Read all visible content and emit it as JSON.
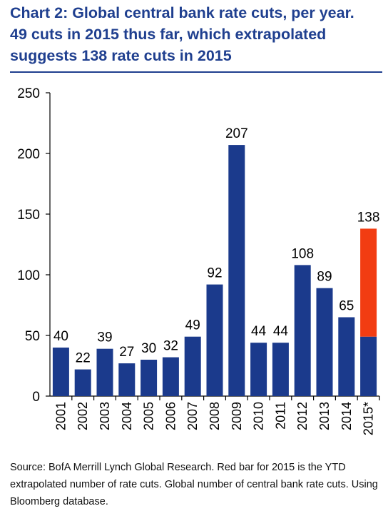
{
  "title": {
    "line1": "Chart 2: Global central bank rate cuts, per year.",
    "line2": "49 cuts in 2015 thus far, which extrapolated",
    "line3": "suggests 138 rate cuts in 2015"
  },
  "source": "Source: BofA Merrill Lynch Global Research. Red bar for 2015 is the YTD extrapolated number of rate cuts. Global number of central bank rate cuts. Using Bloomberg database.",
  "colors": {
    "bar": "#1b3a8c",
    "extrapolated": "#f23c12",
    "title": "#1f3f8f"
  },
  "chart_data": {
    "type": "bar",
    "categories": [
      "2001",
      "2002",
      "2003",
      "2004",
      "2005",
      "2006",
      "2007",
      "2008",
      "2009",
      "2010",
      "2011",
      "2012",
      "2013",
      "2014",
      "2015*"
    ],
    "series": [
      {
        "values": [
          40,
          22,
          39,
          27,
          30,
          32,
          49,
          92,
          207,
          44,
          44,
          108,
          89,
          65,
          49
        ]
      },
      {
        "values": [
          0,
          0,
          0,
          0,
          0,
          0,
          0,
          0,
          0,
          0,
          0,
          0,
          0,
          0,
          89
        ]
      }
    ],
    "data_labels": [
      "40",
      "22",
      "39",
      "27",
      "30",
      "32",
      "49",
      "92",
      "207",
      "44",
      "44",
      "108",
      "89",
      "65",
      "138"
    ],
    "yticks": [
      "0",
      "50",
      "100",
      "150",
      "200",
      "250"
    ],
    "ylim": [
      0,
      250
    ],
    "stacked": true,
    "grid": false,
    "legend": "none"
  }
}
